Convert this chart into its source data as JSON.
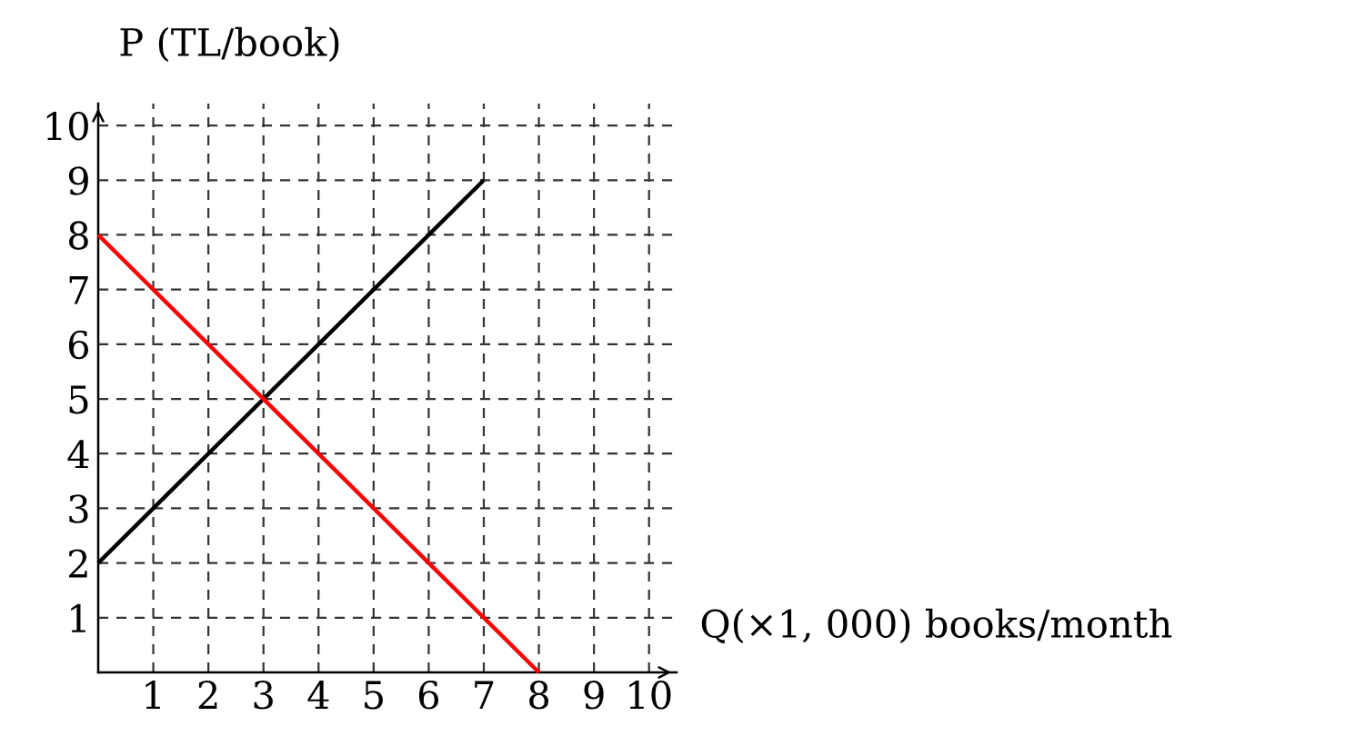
{
  "chart_data": {
    "type": "line",
    "xlabel": "Q(×1, 000) books/month",
    "ylabel": "P (TL/book)",
    "xlim": [
      0,
      10.5
    ],
    "ylim": [
      0,
      10.4
    ],
    "xticks": [
      1,
      2,
      3,
      4,
      5,
      6,
      7,
      8,
      9,
      10
    ],
    "yticks": [
      1,
      2,
      3,
      4,
      5,
      6,
      7,
      8,
      9,
      10
    ],
    "grid": true,
    "line_style": "solid",
    "series": [
      {
        "color": "#000000",
        "x": [
          0,
          7
        ],
        "values": [
          2,
          9
        ]
      },
      {
        "color": "#ff0000",
        "x": [
          0,
          8
        ],
        "values": [
          8,
          0
        ]
      }
    ]
  }
}
